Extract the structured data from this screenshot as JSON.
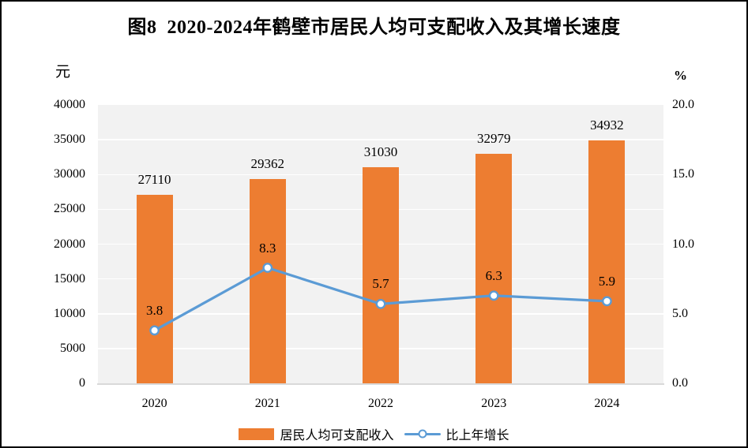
{
  "chart_data": {
    "type": "combo-bar-line",
    "title": "图8  2020-2024年鹤壁市居民人均可支配收入及其增长速度",
    "categories": [
      "2020",
      "2021",
      "2022",
      "2023",
      "2024"
    ],
    "series": [
      {
        "name": "居民人均可支配收入",
        "type": "bar",
        "axis": "left",
        "color": "#ED7D31",
        "values": [
          27110,
          29362,
          31030,
          32979,
          34932
        ]
      },
      {
        "name": "比上年增长",
        "type": "line",
        "axis": "right",
        "color": "#5B9BD5",
        "marker_fill": "#FFFFFF",
        "values": [
          3.8,
          8.3,
          5.7,
          6.3,
          5.9
        ]
      }
    ],
    "left_axis": {
      "unit": "元",
      "min": 0,
      "max": 40000,
      "tick_labels": [
        "0",
        "5000",
        "10000",
        "15000",
        "20000",
        "25000",
        "30000",
        "35000",
        "40000"
      ]
    },
    "right_axis": {
      "unit": "%",
      "min": 0,
      "max": 20,
      "tick_labels": [
        "0.0",
        "5.0",
        "10.0",
        "15.0",
        "20.0"
      ]
    },
    "grid": true,
    "legend_position": "bottom",
    "colors": {
      "plot_bg": "#F2F2F2",
      "gridline": "#FFFFFF",
      "axis_line": "#D9D9D9",
      "text": "#000000",
      "frame_border": "#000000"
    }
  }
}
